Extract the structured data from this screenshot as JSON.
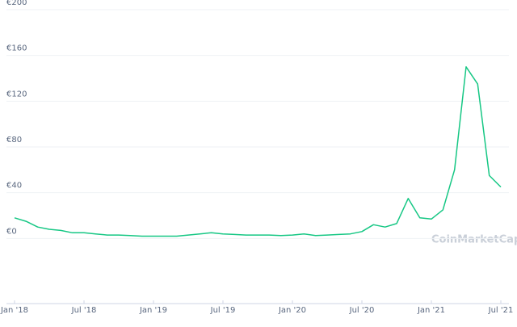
{
  "chart_data": {
    "type": "line",
    "watermark": "CoinMarketCap",
    "x": [
      "2018-01",
      "2018-02",
      "2018-03",
      "2018-04",
      "2018-05",
      "2018-06",
      "2018-07",
      "2018-08",
      "2018-09",
      "2018-10",
      "2018-11",
      "2018-12",
      "2019-01",
      "2019-02",
      "2019-03",
      "2019-04",
      "2019-05",
      "2019-06",
      "2019-07",
      "2019-08",
      "2019-09",
      "2019-10",
      "2019-11",
      "2019-12",
      "2020-01",
      "2020-02",
      "2020-03",
      "2020-04",
      "2020-05",
      "2020-06",
      "2020-07",
      "2020-08",
      "2020-09",
      "2020-10",
      "2020-11",
      "2020-12",
      "2021-01",
      "2021-02",
      "2021-03",
      "2021-04",
      "2021-05",
      "2021-06",
      "2021-07"
    ],
    "series": [
      {
        "color": "#16c784",
        "values": [
          18,
          15,
          10,
          8,
          7,
          5,
          5,
          4,
          3,
          3,
          2.5,
          2,
          2,
          2,
          2,
          3,
          4,
          5,
          4,
          3.5,
          3,
          3,
          3,
          2.5,
          3,
          4,
          2.5,
          3,
          3.5,
          4,
          6,
          12,
          10,
          13,
          35,
          18,
          17,
          25,
          60,
          150,
          135,
          55,
          45
        ]
      }
    ],
    "ylim": [
      -28,
      200
    ],
    "yticks": [
      {
        "value": 0,
        "label": "€0"
      },
      {
        "value": 40,
        "label": "€40"
      },
      {
        "value": 80,
        "label": "€80"
      },
      {
        "value": 120,
        "label": "€120"
      },
      {
        "value": 160,
        "label": "€160"
      },
      {
        "value": 200,
        "label": "€200"
      }
    ],
    "xticks": [
      {
        "value": "2018-01",
        "label": "Jan '18"
      },
      {
        "value": "2018-07",
        "label": "Jul '18"
      },
      {
        "value": "2019-01",
        "label": "Jan '19"
      },
      {
        "value": "2019-07",
        "label": "Jul '19"
      },
      {
        "value": "2020-01",
        "label": "Jan '20"
      },
      {
        "value": "2020-07",
        "label": "Jul '20"
      },
      {
        "value": "2021-01",
        "label": "Jan '21"
      },
      {
        "value": "2021-07",
        "label": "Jul '21"
      }
    ],
    "grid": true
  }
}
